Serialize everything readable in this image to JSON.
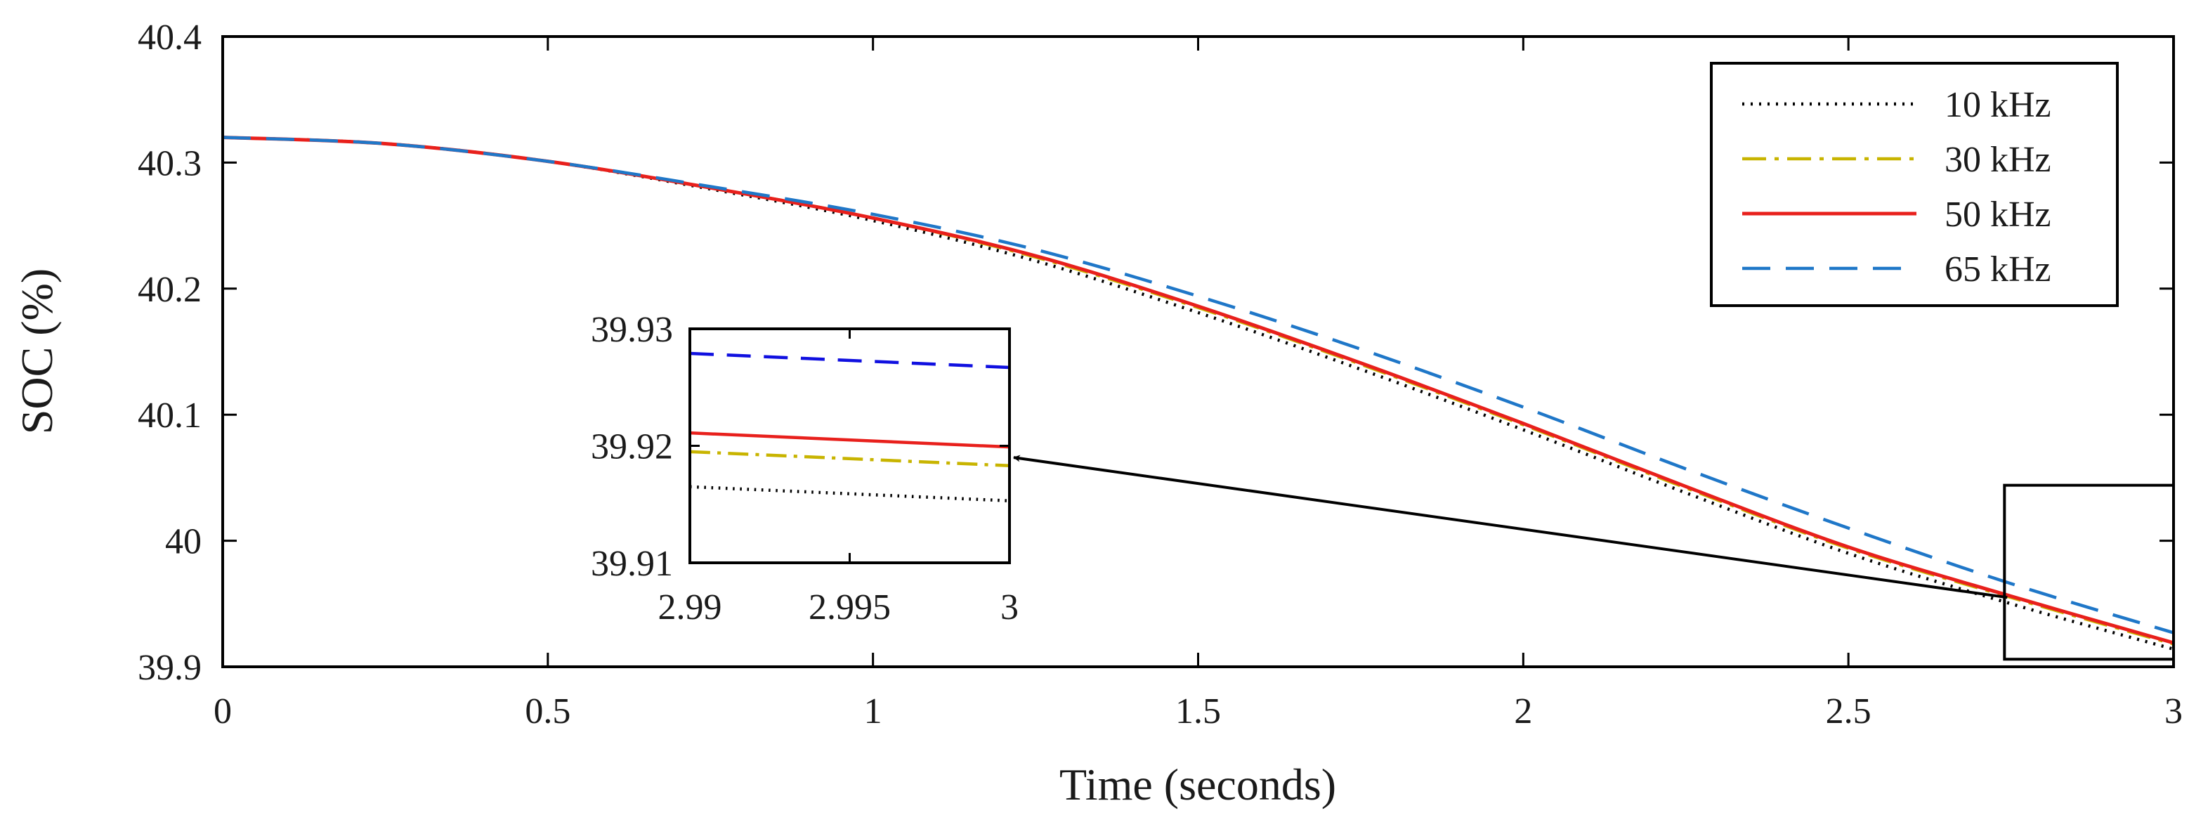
{
  "chart_data": {
    "type": "line",
    "xlabel": "Time (seconds)",
    "ylabel": "SOC (%)",
    "xlim": [
      0,
      3
    ],
    "ylim": [
      39.9,
      40.4
    ],
    "xticks": [
      0,
      0.5,
      1,
      1.5,
      2,
      2.5,
      3
    ],
    "xtick_labels": [
      "0",
      "0.5",
      "1",
      "1.5",
      "2",
      "2.5",
      "3"
    ],
    "yticks": [
      39.9,
      40,
      40.1,
      40.2,
      40.3,
      40.4
    ],
    "ytick_labels": [
      "39.9",
      "40",
      "40.1",
      "40.2",
      "40.3",
      "40.4"
    ],
    "grid": false,
    "legend_position": "top-right",
    "x": [
      0,
      0.25,
      0.5,
      0.75,
      1,
      1.25,
      1.5,
      1.75,
      2,
      2.25,
      2.5,
      2.75,
      3
    ],
    "series": [
      {
        "name": "10 kHz",
        "color": "#000000",
        "style": "dotted",
        "values": [
          40.32,
          40.315,
          40.301,
          40.279,
          40.254,
          40.222,
          40.181,
          40.136,
          40.088,
          40.038,
          39.99,
          39.95,
          39.914
        ]
      },
      {
        "name": "30 kHz",
        "color": "#c8b400",
        "style": "dashdot",
        "values": [
          40.32,
          40.315,
          40.301,
          40.28,
          40.256,
          40.225,
          40.185,
          40.14,
          40.092,
          40.042,
          39.994,
          39.955,
          39.918
        ]
      },
      {
        "name": "50 kHz",
        "color": "#e8201c",
        "style": "solid",
        "values": [
          40.32,
          40.315,
          40.301,
          40.28,
          40.256,
          40.226,
          40.186,
          40.141,
          40.093,
          40.043,
          39.995,
          39.956,
          39.919
        ]
      },
      {
        "name": "65 kHz",
        "color": "#1f77c8",
        "style": "dashed",
        "values": [
          40.32,
          40.315,
          40.301,
          40.281,
          40.259,
          40.231,
          40.194,
          40.152,
          40.106,
          40.057,
          40.01,
          39.966,
          39.927
        ]
      }
    ],
    "zoom_box": {
      "xlim": [
        2.74,
        3
      ],
      "ylim": [
        39.906,
        40.044
      ]
    },
    "inset": {
      "xlim": [
        2.99,
        3
      ],
      "ylim": [
        39.91,
        39.93
      ],
      "xticks": [
        2.99,
        2.995,
        3
      ],
      "xtick_labels": [
        "2.99",
        "2.995",
        "3"
      ],
      "yticks": [
        39.91,
        39.92,
        39.93
      ],
      "ytick_labels": [
        "39.91",
        "39.92",
        "39.93"
      ],
      "x": [
        2.99,
        3
      ],
      "series": [
        {
          "name": "10 kHz",
          "color": "#000000",
          "style": "dotted",
          "values": [
            39.9165,
            39.9153
          ]
        },
        {
          "name": "30 kHz",
          "color": "#c8b400",
          "style": "dashdot",
          "values": [
            39.9195,
            39.9183
          ]
        },
        {
          "name": "50 kHz",
          "color": "#e8201c",
          "style": "solid",
          "values": [
            39.9211,
            39.9199
          ]
        },
        {
          "name": "65 kHz",
          "color": "#1010e0",
          "style": "dashed",
          "values": [
            39.9279,
            39.9267
          ]
        }
      ]
    }
  }
}
